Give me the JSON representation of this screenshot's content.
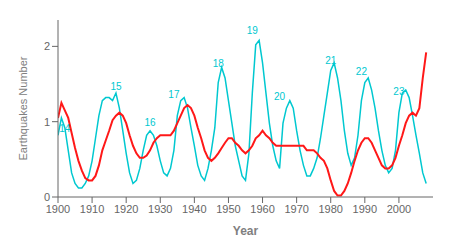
{
  "chart_data": {
    "type": "line",
    "x_label": "Year",
    "y_label": "Earthquakes Number",
    "x": [
      1900,
      1901,
      1902,
      1903,
      1904,
      1905,
      1906,
      1907,
      1908,
      1909,
      1910,
      1911,
      1912,
      1913,
      1914,
      1915,
      1916,
      1917,
      1918,
      1919,
      1920,
      1921,
      1922,
      1923,
      1924,
      1925,
      1926,
      1927,
      1928,
      1929,
      1930,
      1931,
      1932,
      1933,
      1934,
      1935,
      1936,
      1937,
      1938,
      1939,
      1940,
      1941,
      1942,
      1943,
      1944,
      1945,
      1946,
      1947,
      1948,
      1949,
      1950,
      1951,
      1952,
      1953,
      1954,
      1955,
      1956,
      1957,
      1958,
      1959,
      1960,
      1961,
      1962,
      1963,
      1964,
      1965,
      1966,
      1967,
      1968,
      1969,
      1970,
      1971,
      1972,
      1973,
      1974,
      1975,
      1976,
      1977,
      1978,
      1979,
      1980,
      1981,
      1982,
      1983,
      1984,
      1985,
      1986,
      1987,
      1988,
      1989,
      1990,
      1991,
      1992,
      1993,
      1994,
      1995,
      1996,
      1997,
      1998,
      1999,
      2000,
      2001,
      2002,
      2003,
      2004,
      2005,
      2006,
      2007,
      2008
    ],
    "series": [
      {
        "color": "#00C8D0",
        "values": [
          0.82,
          1.05,
          0.92,
          0.62,
          0.32,
          0.18,
          0.12,
          0.12,
          0.18,
          0.28,
          0.48,
          0.78,
          1.08,
          1.28,
          1.32,
          1.32,
          1.28,
          1.38,
          1.18,
          0.88,
          0.58,
          0.32,
          0.18,
          0.22,
          0.38,
          0.62,
          0.82,
          0.88,
          0.82,
          0.68,
          0.48,
          0.32,
          0.28,
          0.38,
          0.62,
          1.08,
          1.28,
          1.32,
          1.18,
          0.92,
          0.68,
          0.42,
          0.28,
          0.22,
          0.38,
          0.62,
          0.92,
          1.52,
          1.72,
          1.58,
          1.28,
          0.98,
          0.68,
          0.48,
          0.28,
          0.22,
          0.58,
          1.38,
          2.02,
          2.08,
          1.78,
          1.38,
          0.98,
          0.68,
          0.48,
          0.38,
          0.98,
          1.18,
          1.28,
          1.18,
          0.88,
          0.62,
          0.42,
          0.28,
          0.28,
          0.38,
          0.52,
          0.78,
          1.08,
          1.38,
          1.68,
          1.78,
          1.58,
          1.28,
          0.88,
          0.58,
          0.42,
          0.52,
          0.82,
          1.28,
          1.52,
          1.58,
          1.42,
          1.18,
          0.88,
          0.62,
          0.42,
          0.32,
          0.38,
          0.62,
          1.12,
          1.38,
          1.42,
          1.32,
          1.08,
          0.82,
          0.58,
          0.32,
          0.18
        ]
      },
      {
        "color": "#FF1818",
        "values": [
          1.05,
          1.25,
          1.15,
          1.05,
          0.85,
          0.65,
          0.48,
          0.35,
          0.25,
          0.22,
          0.22,
          0.28,
          0.42,
          0.62,
          0.75,
          0.88,
          1.02,
          1.08,
          1.12,
          1.08,
          0.98,
          0.82,
          0.68,
          0.58,
          0.52,
          0.52,
          0.55,
          0.62,
          0.72,
          0.78,
          0.82,
          0.82,
          0.82,
          0.82,
          0.88,
          0.98,
          1.08,
          1.18,
          1.22,
          1.18,
          1.08,
          0.92,
          0.78,
          0.62,
          0.52,
          0.48,
          0.52,
          0.58,
          0.65,
          0.72,
          0.78,
          0.78,
          0.72,
          0.68,
          0.62,
          0.58,
          0.62,
          0.68,
          0.78,
          0.82,
          0.88,
          0.82,
          0.78,
          0.72,
          0.68,
          0.68,
          0.68,
          0.68,
          0.68,
          0.68,
          0.68,
          0.68,
          0.68,
          0.62,
          0.62,
          0.62,
          0.58,
          0.52,
          0.48,
          0.38,
          0.22,
          0.08,
          0.02,
          0.02,
          0.08,
          0.18,
          0.32,
          0.48,
          0.62,
          0.72,
          0.78,
          0.78,
          0.72,
          0.62,
          0.52,
          0.42,
          0.38,
          0.38,
          0.42,
          0.52,
          0.68,
          0.82,
          0.98,
          1.08,
          1.12,
          1.08,
          1.18,
          1.58,
          1.92
        ]
      }
    ],
    "xlim": [
      1900,
      2010
    ],
    "xticks": [
      1900,
      1910,
      1920,
      1930,
      1940,
      1950,
      1960,
      1970,
      1980,
      1990,
      2000
    ],
    "ylim": [
      0,
      2.35
    ],
    "yticks": [
      0,
      1,
      2
    ],
    "grid": false,
    "annotations": [
      {
        "text": "14",
        "x": 1902,
        "y": 0.82,
        "color": "#00C8D0"
      },
      {
        "text": "15",
        "x": 1917,
        "y": 1.38,
        "color": "#00C8D0"
      },
      {
        "text": "16",
        "x": 1927,
        "y": 0.9,
        "color": "#00C8D0"
      },
      {
        "text": "17",
        "x": 1934,
        "y": 1.28,
        "color": "#00C8D0"
      },
      {
        "text": "18",
        "x": 1947,
        "y": 1.68,
        "color": "#00C8D0"
      },
      {
        "text": "19",
        "x": 1957,
        "y": 2.12,
        "color": "#00C8D0"
      },
      {
        "text": "20",
        "x": 1965,
        "y": 1.25,
        "color": "#00C8D0"
      },
      {
        "text": "21",
        "x": 1980,
        "y": 1.72,
        "color": "#00C8D0"
      },
      {
        "text": "22",
        "x": 1989,
        "y": 1.58,
        "color": "#00C8D0"
      },
      {
        "text": "23",
        "x": 2000,
        "y": 1.32,
        "color": "#00C8D0"
      }
    ]
  }
}
